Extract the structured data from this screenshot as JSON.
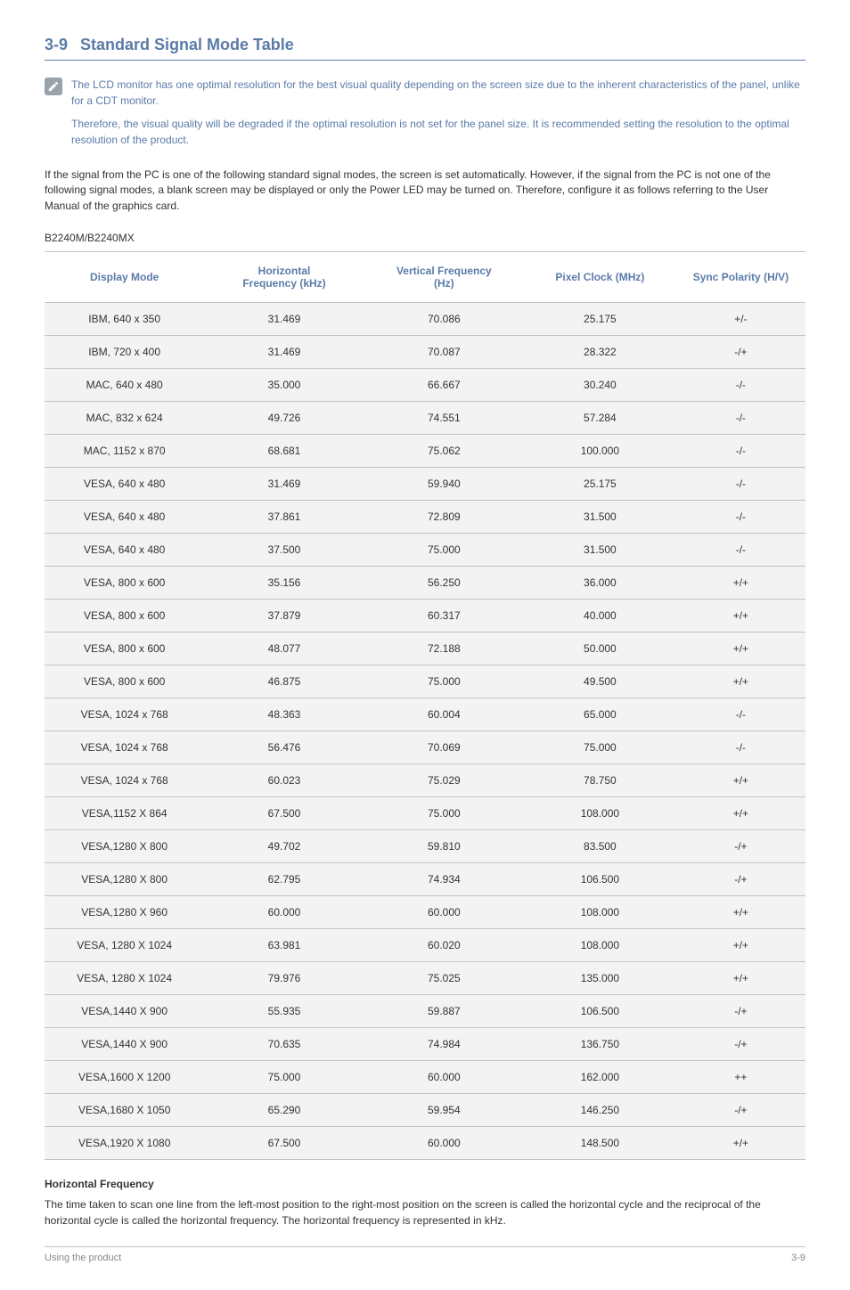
{
  "section": {
    "number": "3-9",
    "title": "Standard Signal Mode Table"
  },
  "notes": {
    "p1": "The LCD monitor has one optimal resolution for the best visual quality depending on the screen size due to the inherent characteristics of the panel, unlike for a CDT monitor.",
    "p2": "Therefore, the visual quality will be degraded if the optimal resolution is not set for the panel size. It is recommended setting the resolution to the optimal resolution of the product."
  },
  "intro": "If the signal from the PC is one of the following standard signal modes, the screen is set automatically. However, if the signal from the PC is not one of the following signal modes, a blank screen may be displayed or only the Power LED may be turned on. Therefore, configure it as follows referring to the User Manual of the graphics card.",
  "model": "B2240M/B2240MX",
  "table": {
    "headers": {
      "c1": "Display Mode",
      "c2_l1": "Horizontal",
      "c2_l2": "Frequency (kHz)",
      "c3_l1": "Vertical Frequency",
      "c3_l2": "(Hz)",
      "c4": "Pixel Clock (MHz)",
      "c5": "Sync Polarity (H/V)"
    },
    "rows": [
      [
        "IBM, 640 x 350",
        "31.469",
        "70.086",
        "25.175",
        "+/-"
      ],
      [
        "IBM, 720 x 400",
        "31.469",
        "70.087",
        "28.322",
        "-/+"
      ],
      [
        "MAC, 640 x 480",
        "35.000",
        "66.667",
        "30.240",
        "-/-"
      ],
      [
        "MAC, 832 x 624",
        "49.726",
        "74.551",
        "57.284",
        "-/-"
      ],
      [
        "MAC, 1152 x 870",
        "68.681",
        "75.062",
        "100.000",
        "-/-"
      ],
      [
        "VESA, 640 x 480",
        "31.469",
        "59.940",
        "25.175",
        "-/-"
      ],
      [
        "VESA, 640 x 480",
        "37.861",
        "72.809",
        "31.500",
        "-/-"
      ],
      [
        "VESA, 640 x 480",
        "37.500",
        "75.000",
        "31.500",
        "-/-"
      ],
      [
        "VESA, 800 x 600",
        "35.156",
        "56.250",
        "36.000",
        "+/+"
      ],
      [
        "VESA, 800 x 600",
        "37.879",
        "60.317",
        "40.000",
        "+/+"
      ],
      [
        "VESA, 800 x 600",
        "48.077",
        "72.188",
        "50.000",
        "+/+"
      ],
      [
        "VESA, 800 x 600",
        "46.875",
        "75.000",
        "49.500",
        "+/+"
      ],
      [
        "VESA, 1024 x 768",
        "48.363",
        "60.004",
        "65.000",
        "-/-"
      ],
      [
        "VESA, 1024 x 768",
        "56.476",
        "70.069",
        "75.000",
        "-/-"
      ],
      [
        "VESA, 1024 x 768",
        "60.023",
        "75.029",
        "78.750",
        "+/+"
      ],
      [
        "VESA,1152 X 864",
        "67.500",
        "75.000",
        "108.000",
        "+/+"
      ],
      [
        "VESA,1280 X 800",
        "49.702",
        "59.810",
        "83.500",
        "-/+"
      ],
      [
        "VESA,1280 X 800",
        "62.795",
        "74.934",
        "106.500",
        "-/+"
      ],
      [
        "VESA,1280 X 960",
        "60.000",
        "60.000",
        "108.000",
        "+/+"
      ],
      [
        "VESA, 1280 X 1024",
        "63.981",
        "60.020",
        "108.000",
        "+/+"
      ],
      [
        "VESA, 1280 X 1024",
        "79.976",
        "75.025",
        "135.000",
        "+/+"
      ],
      [
        "VESA,1440 X 900",
        "55.935",
        "59.887",
        "106.500",
        "-/+"
      ],
      [
        "VESA,1440 X 900",
        "70.635",
        "74.984",
        "136.750",
        "-/+"
      ],
      [
        "VESA,1600 X 1200",
        "75.000",
        "60.000",
        "162.000",
        "++"
      ],
      [
        "VESA,1680 X 1050",
        "65.290",
        "59.954",
        "146.250",
        "-/+"
      ],
      [
        "VESA,1920 X 1080",
        "67.500",
        "60.000",
        "148.500",
        "+/+"
      ]
    ]
  },
  "hfreq": {
    "heading": "Horizontal Frequency",
    "text": "The time taken to scan one line from the left-most position to the right-most position on the screen is called the horizontal cycle and the reciprocal of the horizontal cycle is called the horizontal frequency. The horizontal frequency is represented in kHz."
  },
  "footer": {
    "left": "Using the product",
    "right": "3-9"
  }
}
